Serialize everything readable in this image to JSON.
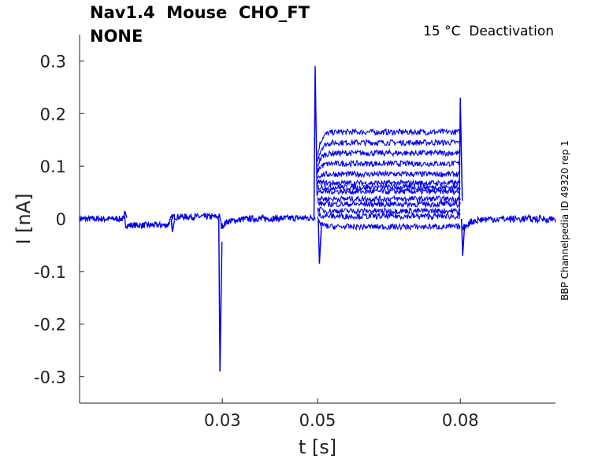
{
  "header": {
    "title_line1": "Nav1.4  Mouse  CHO_FT",
    "title_line2": "NONE",
    "condition": "15 °C  Deactivation",
    "side_label": "BBP Channelpedia ID 49320 rep 1"
  },
  "chart_data": {
    "type": "line",
    "xlabel": "t [s]",
    "ylabel": "I [nA]",
    "xlim": [
      0.0,
      0.1
    ],
    "ylim": [
      -0.35,
      0.35
    ],
    "xticks": [
      0.03,
      0.05,
      0.08
    ],
    "xtick_labels": [
      "0.03",
      "0.05",
      "0.08"
    ],
    "yticks": [
      0.3,
      0.2,
      0.1,
      0,
      -0.1,
      -0.2,
      -0.3
    ],
    "ytick_labels": [
      "0.3",
      "0.2",
      "0.1",
      "0",
      "-0.1",
      "-0.2",
      "-0.3"
    ],
    "grid": false,
    "line_color": "#0000ee",
    "baseline_x": [
      0.0,
      0.0095,
      0.0097,
      0.0185,
      0.0195,
      0.0295,
      0.0298,
      0.031,
      0.035,
      0.049,
      0.0495
    ],
    "baseline_y": [
      0.0,
      0.0,
      -0.012,
      -0.012,
      0.004,
      0.004,
      -0.015,
      -0.005,
      0.0,
      0.002,
      0.004
    ],
    "transients": [
      {
        "t": 0.0095,
        "peak": 0.015
      },
      {
        "t": 0.0195,
        "peak": -0.025
      },
      {
        "t": 0.0295,
        "peak": -0.29
      },
      {
        "t": 0.0495,
        "peak": 0.29
      },
      {
        "t": 0.0504,
        "peak": -0.085
      },
      {
        "t": 0.08,
        "peak": 0.23
      },
      {
        "t": 0.0805,
        "peak": -0.07
      }
    ],
    "series_step_levels": [
      0.165,
      0.145,
      0.125,
      0.105,
      0.085,
      0.068,
      0.06,
      0.052,
      0.038,
      0.028,
      0.015,
      0.005,
      -0.015
    ],
    "step_x": [
      0.05,
      0.08
    ],
    "tail_y": 0.0
  }
}
